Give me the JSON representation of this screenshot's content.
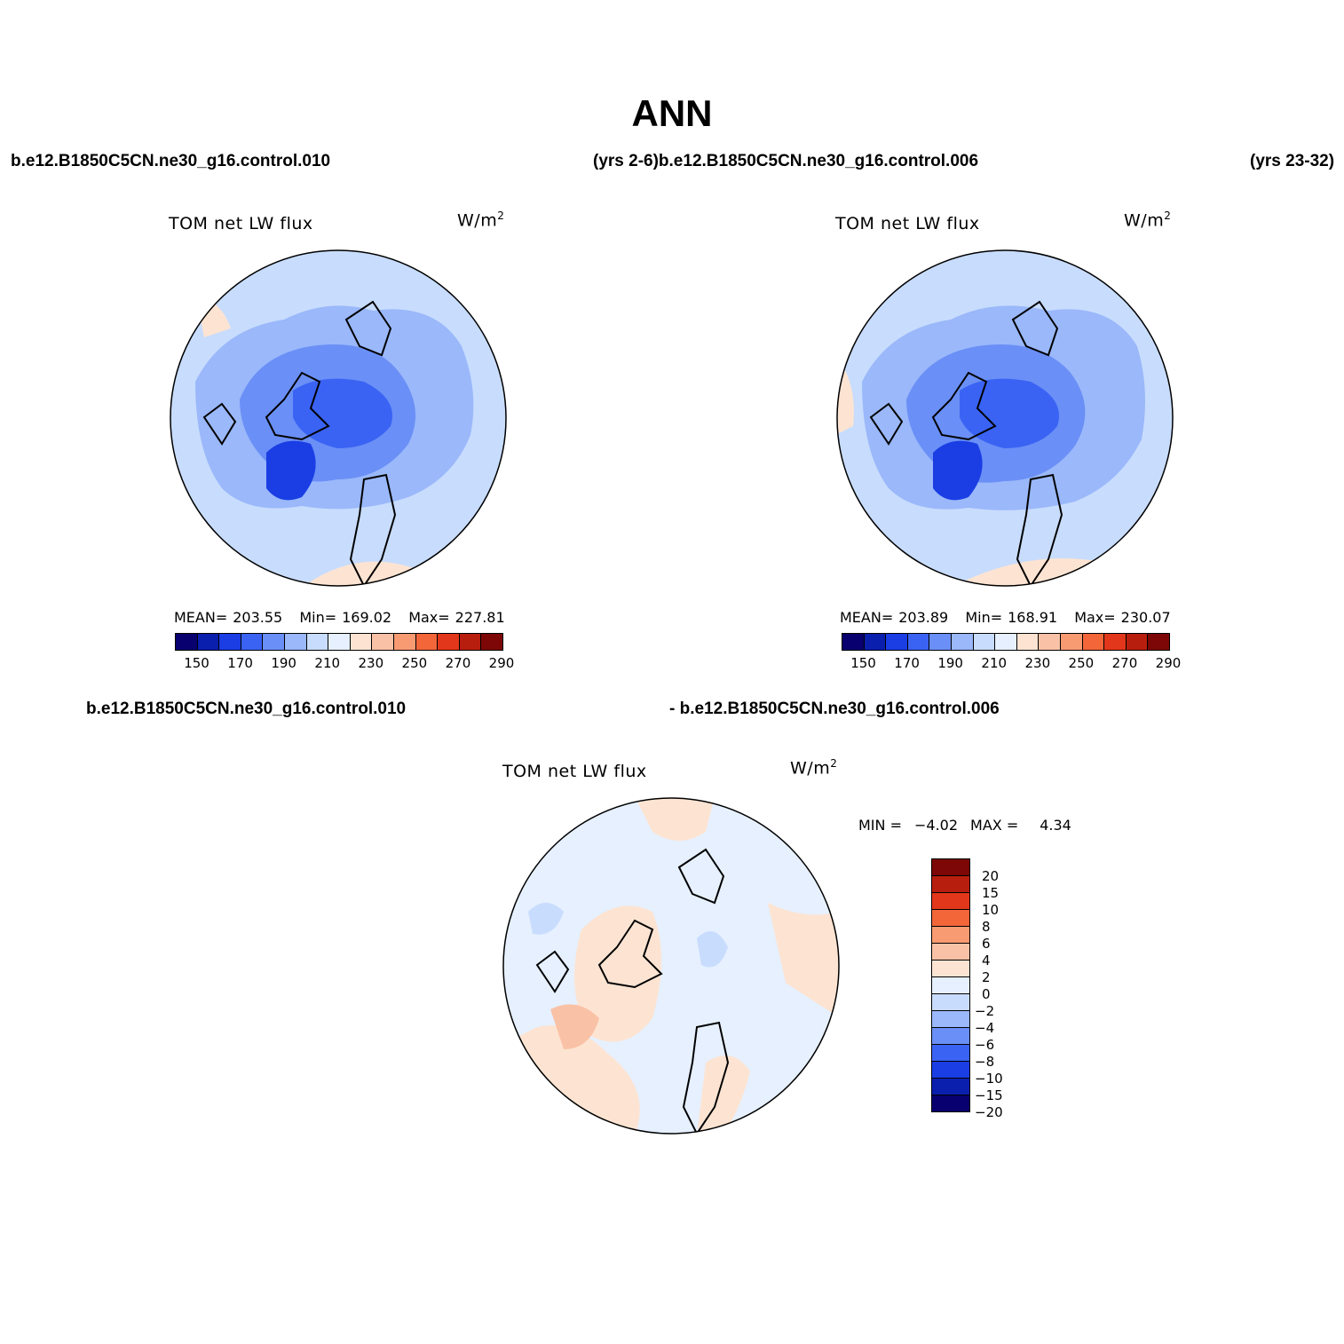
{
  "title": "ANN",
  "row1": {
    "left_case": "b.e12.B1850C5CN.ne30_g16.control.010",
    "mid_case": "(yrs 2-6)b.e12.B1850C5CN.ne30_g16.control.006",
    "right_case": "(yrs 23-32)"
  },
  "row2": {
    "left_case": "b.e12.B1850C5CN.ne30_g16.control.010",
    "right_case": "- b.e12.B1850C5CN.ne30_g16.control.006"
  },
  "units_base": "W/m",
  "units_exp": "2",
  "panels": [
    {
      "title": "TOM net LW flux",
      "mean_label": "MEAN=",
      "mean": "203.55",
      "min_label": "Min=",
      "min": "169.02",
      "max_label": "Max=",
      "max": "227.81"
    },
    {
      "title": "TOM net LW flux",
      "mean_label": "MEAN=",
      "mean": "203.89",
      "min_label": "Min=",
      "min": "168.91",
      "max_label": "Max=",
      "max": "230.07"
    }
  ],
  "diff_panel": {
    "title": "TOM net LW flux",
    "min_label": "MIN =",
    "min": "−4.02",
    "max_label": "MAX =",
    "max": "4.34"
  },
  "colorbar_main": {
    "colors": [
      "#08006e",
      "#0a1fae",
      "#1a3ee4",
      "#3a63f4",
      "#6a8ff6",
      "#9ab8fa",
      "#c8dcfd",
      "#e6f0ff",
      "#fde4d2",
      "#f9c2a6",
      "#f99b72",
      "#f2663a",
      "#e2371a",
      "#b81e0e",
      "#7c0706"
    ],
    "labels": [
      "150",
      "170",
      "190",
      "210",
      "230",
      "250",
      "270",
      "290"
    ]
  },
  "colorbar_diff": {
    "colors": [
      "#7c0706",
      "#b81e0e",
      "#e2371a",
      "#f2663a",
      "#f99b72",
      "#f9c2a6",
      "#fde4d2",
      "#e6f0ff",
      "#c8dcfd",
      "#9ab8fa",
      "#6a8ff6",
      "#3a63f4",
      "#1a3ee4",
      "#0a1fae",
      "#08006e"
    ],
    "labels": [
      "20",
      "15",
      "10",
      "8",
      "6",
      "4",
      "2",
      "0",
      "−2",
      "−4",
      "−6",
      "−8",
      "−10",
      "−15",
      "−20"
    ]
  }
}
